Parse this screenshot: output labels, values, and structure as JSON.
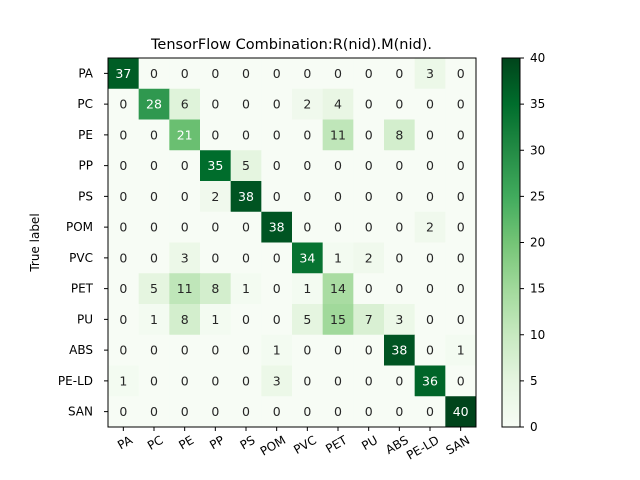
{
  "chart_data": {
    "type": "heatmap",
    "title": "TensorFlow Combination:R(nid).M(nid).",
    "xlabel": "",
    "ylabel": "True label",
    "x_categories": [
      "PA",
      "PC",
      "PE",
      "PP",
      "PS",
      "POM",
      "PVC",
      "PET",
      "PU",
      "ABS",
      "PE-LD",
      "SAN"
    ],
    "y_categories": [
      "PA",
      "PC",
      "PE",
      "PP",
      "PS",
      "POM",
      "PVC",
      "PET",
      "PU",
      "ABS",
      "PE-LD",
      "SAN"
    ],
    "values": [
      [
        37,
        0,
        0,
        0,
        0,
        0,
        0,
        0,
        0,
        0,
        3,
        0
      ],
      [
        0,
        28,
        6,
        0,
        0,
        0,
        2,
        4,
        0,
        0,
        0,
        0
      ],
      [
        0,
        0,
        21,
        0,
        0,
        0,
        0,
        11,
        0,
        8,
        0,
        0
      ],
      [
        0,
        0,
        0,
        35,
        5,
        0,
        0,
        0,
        0,
        0,
        0,
        0
      ],
      [
        0,
        0,
        0,
        2,
        38,
        0,
        0,
        0,
        0,
        0,
        0,
        0
      ],
      [
        0,
        0,
        0,
        0,
        0,
        38,
        0,
        0,
        0,
        0,
        2,
        0
      ],
      [
        0,
        0,
        3,
        0,
        0,
        0,
        34,
        1,
        2,
        0,
        0,
        0
      ],
      [
        0,
        5,
        11,
        8,
        1,
        0,
        1,
        14,
        0,
        0,
        0,
        0
      ],
      [
        0,
        1,
        8,
        1,
        0,
        0,
        5,
        15,
        7,
        3,
        0,
        0
      ],
      [
        0,
        0,
        0,
        0,
        0,
        1,
        0,
        0,
        0,
        38,
        0,
        1
      ],
      [
        1,
        0,
        0,
        0,
        0,
        3,
        0,
        0,
        0,
        0,
        36,
        0
      ],
      [
        0,
        0,
        0,
        0,
        0,
        0,
        0,
        0,
        0,
        0,
        0,
        40
      ]
    ],
    "colorbar": {
      "min": 0,
      "max": 40,
      "ticks": [
        0,
        5,
        10,
        15,
        20,
        25,
        30,
        35,
        40
      ],
      "colormap": "Greens"
    },
    "grid": false
  }
}
